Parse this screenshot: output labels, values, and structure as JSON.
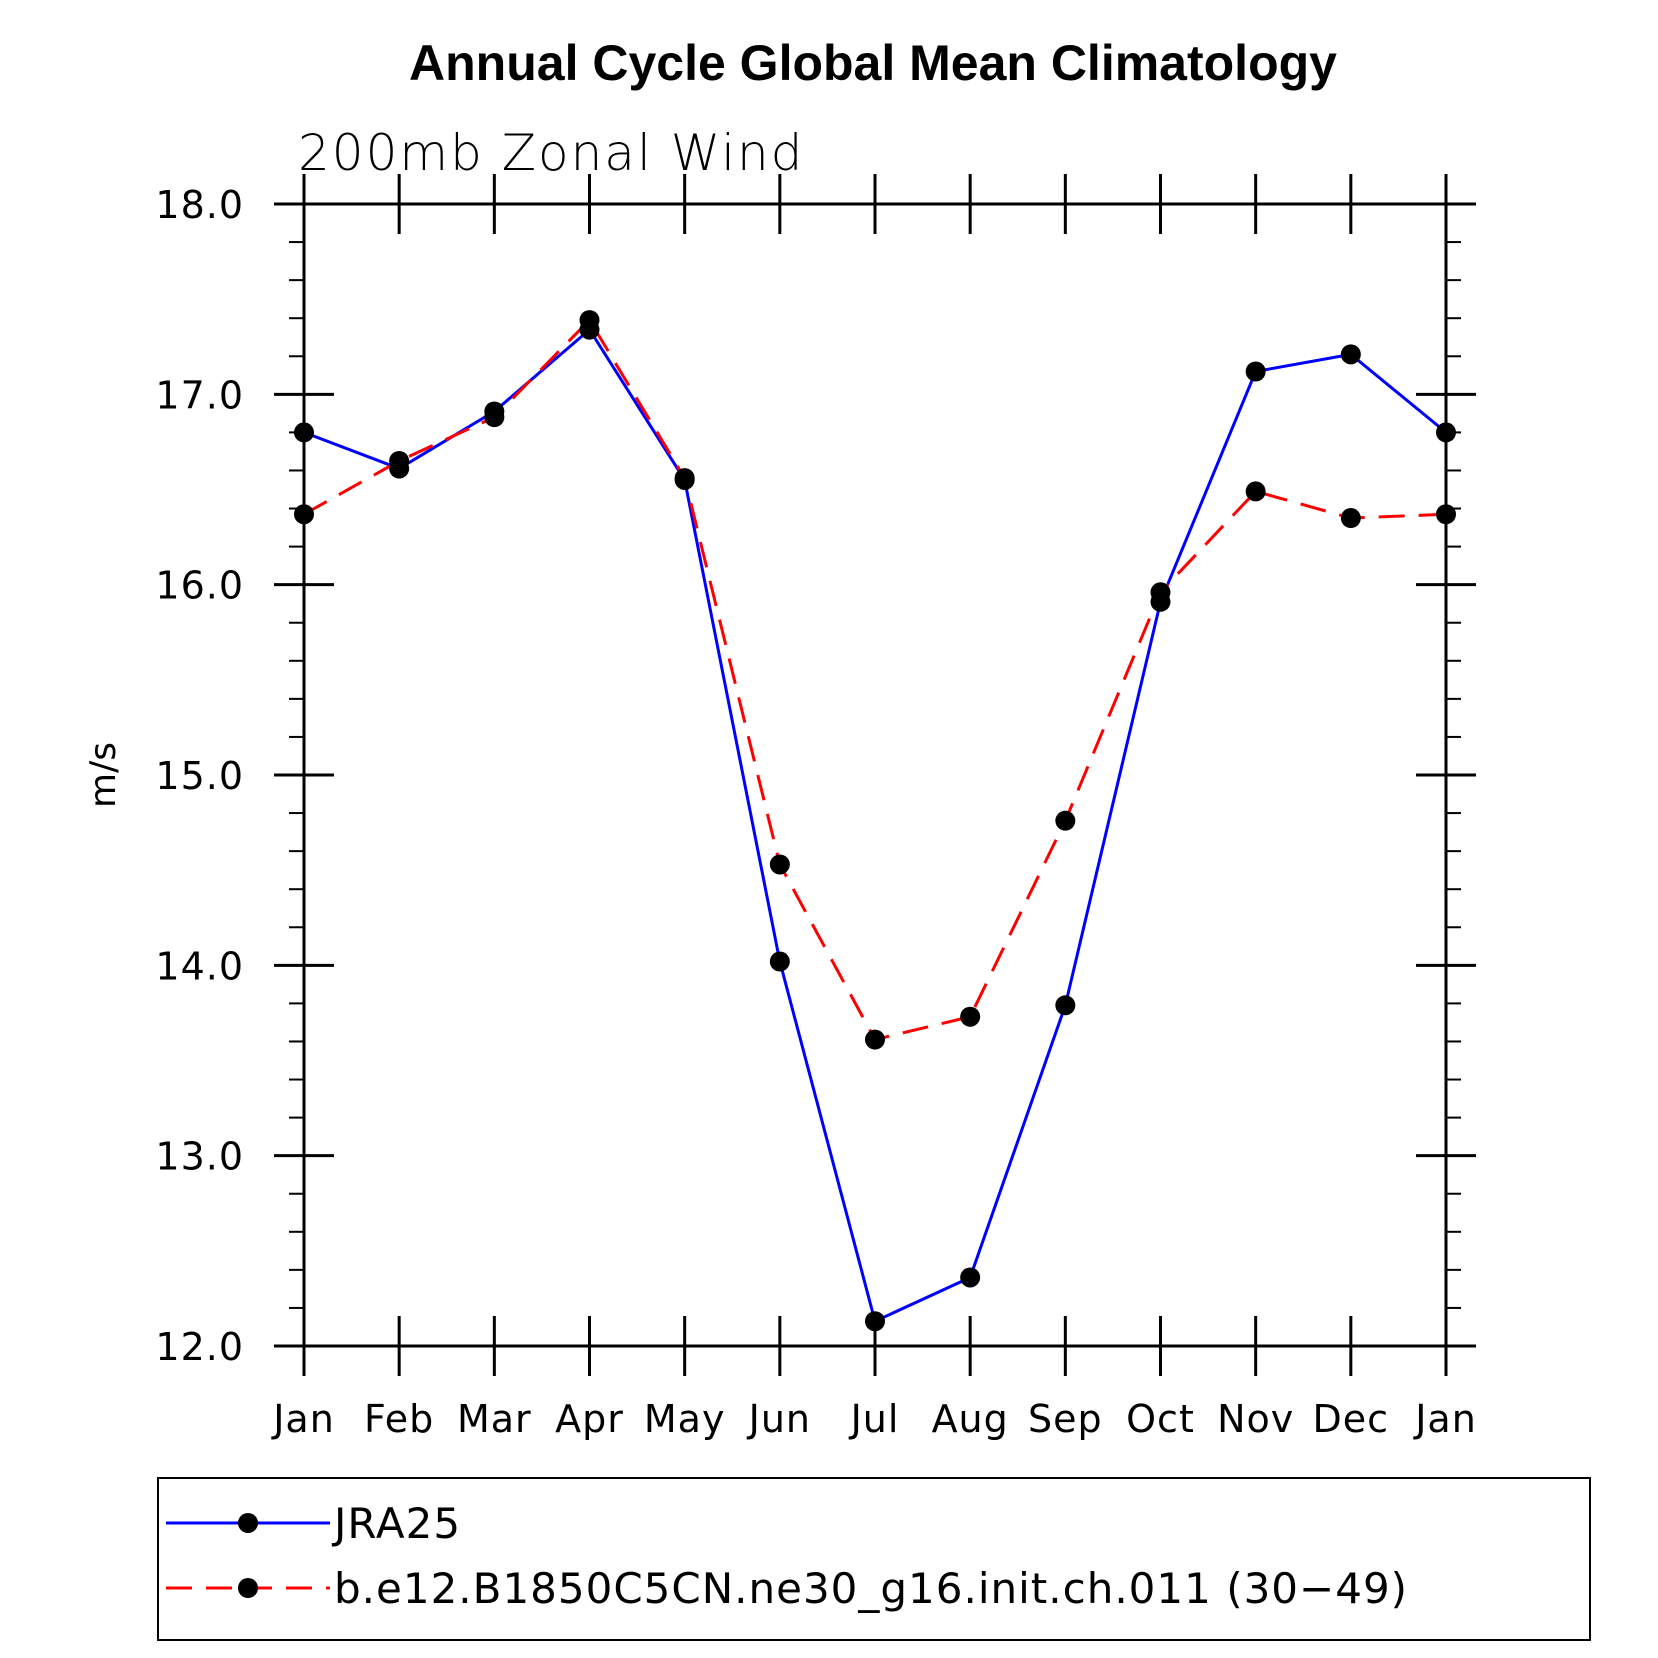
{
  "chart_data": {
    "type": "line",
    "title": "Annual Cycle Global Mean Climatology",
    "subtitle": "200mb Zonal Wind",
    "xlabel": "",
    "ylabel": "m/s",
    "ylim": [
      12.0,
      18.0
    ],
    "yticks": [
      "12.0",
      "13.0",
      "14.0",
      "15.0",
      "16.0",
      "17.0",
      "18.0"
    ],
    "categories": [
      "Jan",
      "Feb",
      "Mar",
      "Apr",
      "May",
      "Jun",
      "Jul",
      "Aug",
      "Sep",
      "Oct",
      "Nov",
      "Dec",
      "Jan"
    ],
    "series": [
      {
        "name": "JRA25",
        "color": "#0000ff",
        "style": "solid",
        "values": [
          16.8,
          16.61,
          16.91,
          17.34,
          16.55,
          14.02,
          12.13,
          12.36,
          13.79,
          15.91,
          17.12,
          17.21,
          16.8
        ]
      },
      {
        "name": "b.e12.B1850C5CN.ne30_g16.init.ch.011 (30−49)",
        "color": "#ff0000",
        "style": "dashed",
        "values": [
          16.37,
          16.65,
          16.88,
          17.39,
          16.56,
          14.53,
          13.61,
          13.73,
          14.76,
          15.96,
          16.49,
          16.35,
          16.37
        ]
      }
    ],
    "legend_position": "bottom"
  }
}
